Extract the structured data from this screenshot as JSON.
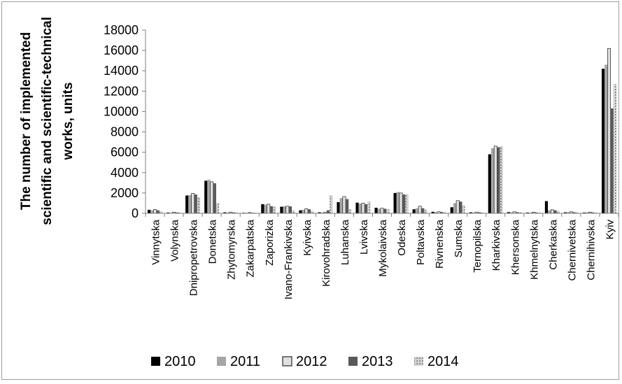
{
  "chart_data": {
    "type": "bar",
    "title": "",
    "xlabel": "",
    "ylabel": "The number of implemented scientific and scientific-technical works, units",
    "ylabel_lines": [
      "The number of implemented",
      "scientific and scientific-technical",
      "works, units"
    ],
    "ylim": [
      0,
      18000
    ],
    "yticks": [
      0,
      2000,
      4000,
      6000,
      8000,
      10000,
      12000,
      14000,
      16000,
      18000
    ],
    "grid": false,
    "legend_position": "bottom",
    "categories": [
      "Vinnytska",
      "Volynska",
      "Dnipropetrovska",
      "Donetska",
      "Zhytomyrska",
      "Zakarpatska",
      "Zaporizka",
      "Ivano-Frankivska",
      "Kyivska",
      "Kirovohradska",
      "Luhanska",
      "Lvivska",
      "Mykolaivska",
      "Odeska",
      "Poltavska",
      "Rivnenska",
      "Sumska",
      "Ternopilska",
      "Kharkivska",
      "Khersonska",
      "Khmelnytska",
      "Cherkaska",
      "Chernivetska",
      "Chernihivska",
      "Kyiv"
    ],
    "series": [
      {
        "name": "2010",
        "color": "#000000",
        "values": [
          350,
          80,
          1750,
          3200,
          100,
          60,
          900,
          650,
          300,
          100,
          1100,
          1050,
          550,
          2000,
          400,
          150,
          600,
          100,
          5800,
          120,
          80,
          1200,
          100,
          80,
          14200
        ]
      },
      {
        "name": "2011",
        "color": "#a6a6a6",
        "values": [
          300,
          60,
          1800,
          3300,
          80,
          50,
          850,
          700,
          350,
          80,
          1500,
          950,
          450,
          2100,
          500,
          120,
          1000,
          80,
          6400,
          100,
          60,
          300,
          120,
          100,
          14600
        ]
      },
      {
        "name": "2012",
        "color": "#e0e0e0",
        "values": [
          380,
          120,
          1950,
          3100,
          120,
          80,
          900,
          700,
          450,
          120,
          1650,
          1000,
          500,
          2000,
          700,
          150,
          1250,
          120,
          6600,
          150,
          120,
          350,
          150,
          120,
          16200
        ]
      },
      {
        "name": "2013",
        "color": "#595959",
        "values": [
          300,
          90,
          1850,
          2950,
          90,
          60,
          700,
          680,
          400,
          300,
          1400,
          900,
          450,
          1850,
          500,
          130,
          1150,
          100,
          6500,
          110,
          90,
          300,
          110,
          90,
          10300
        ]
      },
      {
        "name": "2014",
        "color": "#c8c8c8",
        "pattern": true,
        "values": [
          200,
          80,
          1600,
          1000,
          80,
          60,
          650,
          300,
          250,
          1750,
          400,
          1150,
          400,
          1900,
          350,
          100,
          800,
          80,
          6600,
          100,
          80,
          250,
          90,
          70,
          12700
        ]
      }
    ]
  }
}
